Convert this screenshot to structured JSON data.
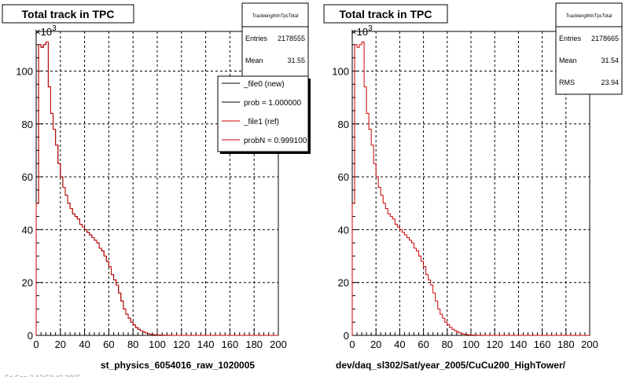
{
  "footer_text": "Fri Sep 2 12:52:42 2005",
  "chart_data": [
    {
      "type": "line",
      "title": "Total track in TPC",
      "xlabel": "st_physics_6054016_raw_1020005",
      "ylabel": "",
      "y_exponent": "×10",
      "y_exponent_power": "3",
      "xlim": [
        0,
        200
      ],
      "ylim": [
        0,
        115
      ],
      "x_ticks": [
        "0",
        "20",
        "40",
        "60",
        "80",
        "100",
        "120",
        "140",
        "160",
        "180",
        "200"
      ],
      "y_ticks": [
        "0",
        "20",
        "40",
        "60",
        "80",
        "100"
      ],
      "grid": true,
      "stats": {
        "name": "TracklengthInTpcTotal",
        "rows": [
          {
            "label": "Entries",
            "value": "2178555"
          },
          {
            "label": "Mean",
            "value": "31.55"
          }
        ]
      },
      "legend": {
        "placement": "top-right",
        "entries": [
          {
            "label": "_file0 (new)",
            "color": "#000000"
          },
          {
            "label": "prob = 1.000000",
            "color": "#000000"
          },
          {
            "label": "_file1 (ref)",
            "color": "#cc0000"
          },
          {
            "label": "probN = 0.999100",
            "color": "#cc0000"
          }
        ]
      },
      "series": [
        {
          "name": "_file0 (new)",
          "color": "#000000",
          "bin_width": 2,
          "values": [
            50,
            110,
            109,
            110,
            111,
            94,
            84,
            78,
            72,
            65,
            60,
            56,
            53,
            50,
            48,
            46,
            45,
            44,
            42,
            41,
            40,
            39,
            38,
            37,
            36,
            35,
            33,
            32,
            30,
            28,
            26,
            23,
            21,
            19,
            16,
            13,
            10,
            8,
            6.5,
            5,
            4,
            3,
            2.3,
            1.8,
            1.3,
            0.9,
            0.6,
            0.4,
            0.3,
            0.2,
            0.15,
            0.1,
            0.08,
            0.05,
            0.03,
            0.02,
            0.01,
            0,
            0,
            0,
            0,
            0,
            0,
            0,
            0,
            0,
            0,
            0,
            0,
            0,
            0,
            0,
            0,
            0,
            0,
            0,
            0,
            0,
            0,
            0,
            0,
            0,
            0,
            0,
            0,
            0,
            0,
            0,
            0,
            0,
            0,
            0,
            0,
            0,
            0,
            0,
            0,
            0,
            0,
            0
          ]
        },
        {
          "name": "_file1 (ref)",
          "color": "#cc0000",
          "bin_width": 2,
          "values": [
            50,
            110,
            109,
            110,
            111,
            94,
            84,
            78,
            72,
            65,
            60,
            56,
            53,
            50,
            48,
            46,
            45,
            44,
            42,
            41,
            40,
            39,
            38,
            37,
            36,
            35,
            33,
            32,
            30,
            28,
            26,
            23,
            21,
            19,
            16,
            13,
            10,
            8,
            6.5,
            5,
            4,
            3,
            2.3,
            1.8,
            1.3,
            0.9,
            0.6,
            0.4,
            0.3,
            0.2,
            0.15,
            0.1,
            0.08,
            0.05,
            0.03,
            0.02,
            0.01,
            0,
            0,
            0,
            0,
            0,
            0,
            0,
            0,
            0,
            0,
            0,
            0,
            0,
            0,
            0,
            0,
            0,
            0,
            0,
            0,
            0,
            0,
            0,
            0,
            0,
            0,
            0,
            0,
            0,
            0,
            0,
            0,
            0,
            0,
            0,
            0,
            0,
            0,
            0,
            0,
            0,
            0,
            0
          ]
        }
      ]
    },
    {
      "type": "line",
      "title": "Total track in TPC",
      "xlabel": "dev/daq_sl302/Sat/year_2005/CuCu200_HighTower/",
      "ylabel": "",
      "y_exponent": "×10",
      "y_exponent_power": "3",
      "xlim": [
        0,
        200
      ],
      "ylim": [
        0,
        115
      ],
      "x_ticks": [
        "0",
        "20",
        "40",
        "60",
        "80",
        "100",
        "120",
        "140",
        "160",
        "180",
        "200"
      ],
      "y_ticks": [
        "0",
        "20",
        "40",
        "60",
        "80",
        "100"
      ],
      "grid": true,
      "stats": {
        "name": "TracklengthInTpcTotal",
        "rows": [
          {
            "label": "Entries",
            "value": "2178665"
          },
          {
            "label": "Mean",
            "value": "31.54"
          },
          {
            "label": "RMS",
            "value": "23.94"
          }
        ]
      },
      "series": [
        {
          "name": "",
          "color": "#cc0000",
          "bin_width": 2,
          "values": [
            50,
            110,
            109,
            110,
            111,
            94,
            84,
            78,
            72,
            65,
            60,
            56,
            53,
            50,
            48,
            46,
            45,
            44,
            42,
            41,
            40,
            39,
            38,
            37,
            36,
            35,
            33,
            32,
            30,
            28,
            26,
            23,
            21,
            19,
            16,
            13,
            10,
            8,
            6.5,
            5,
            4,
            3,
            2.3,
            1.8,
            1.3,
            0.9,
            0.6,
            0.4,
            0.3,
            0.2,
            0.15,
            0.1,
            0.08,
            0.05,
            0.03,
            0.02,
            0.01,
            0,
            0,
            0,
            0,
            0,
            0,
            0,
            0,
            0,
            0,
            0,
            0,
            0,
            0,
            0,
            0,
            0,
            0,
            0,
            0,
            0,
            0,
            0,
            0,
            0,
            0,
            0,
            0,
            0,
            0,
            0,
            0,
            0,
            0,
            0,
            0,
            0,
            0,
            0,
            0,
            0,
            0,
            0
          ]
        }
      ]
    }
  ]
}
